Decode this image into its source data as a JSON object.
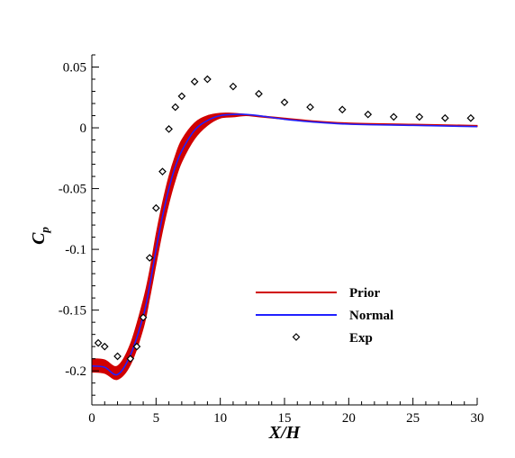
{
  "chart_data": {
    "type": "line",
    "xlabel": "X/H",
    "ylabel_main": "C",
    "ylabel_sub": "p",
    "xlim": [
      0,
      30
    ],
    "ylim": [
      -0.228,
      0.06
    ],
    "xticks": [
      0,
      5,
      10,
      15,
      20,
      25,
      30
    ],
    "xtick_labels": [
      "0",
      "5",
      "10",
      "15",
      "20",
      "25",
      "30"
    ],
    "yticks": [
      0.05,
      0,
      -0.05,
      -0.1,
      -0.15,
      -0.2
    ],
    "ytick_labels": [
      "0.05",
      "0",
      "-0.05",
      "-0.1",
      "-0.15",
      "-0.2"
    ],
    "grid": false,
    "legend_position": "lower-right",
    "series": [
      {
        "name": "Prior",
        "kind": "band",
        "color": "#d00000",
        "x": [
          0,
          1,
          2,
          3,
          4,
          4.5,
          5,
          5.5,
          6,
          6.5,
          7,
          8,
          9,
          10,
          11,
          12,
          13,
          15,
          17,
          20,
          25,
          30
        ],
        "lower": [
          -0.201,
          -0.202,
          -0.207,
          -0.195,
          -0.165,
          -0.14,
          -0.112,
          -0.085,
          -0.062,
          -0.043,
          -0.028,
          -0.009,
          0.002,
          0.008,
          0.009,
          0.01,
          0.009,
          0.007,
          0.005,
          0.003,
          0.002,
          0.001
        ],
        "upper": [
          -0.19,
          -0.191,
          -0.196,
          -0.178,
          -0.142,
          -0.118,
          -0.088,
          -0.062,
          -0.04,
          -0.023,
          -0.01,
          0.004,
          0.01,
          0.012,
          0.012,
          0.011,
          0.01,
          0.008,
          0.006,
          0.004,
          0.003,
          0.002
        ]
      },
      {
        "name": "Normal",
        "kind": "line",
        "color": "#2020ff",
        "x": [
          0,
          1,
          2,
          3,
          4,
          4.5,
          5,
          5.5,
          6,
          6.5,
          7,
          8,
          9,
          10,
          11,
          12,
          13,
          15,
          17,
          20,
          25,
          30
        ],
        "y": [
          -0.196,
          -0.197,
          -0.203,
          -0.187,
          -0.155,
          -0.13,
          -0.1,
          -0.073,
          -0.05,
          -0.032,
          -0.019,
          -0.002,
          0.006,
          0.01,
          0.011,
          0.011,
          0.01,
          0.007,
          0.005,
          0.003,
          0.002,
          0.001
        ]
      },
      {
        "name": "Exp",
        "kind": "scatter",
        "marker": "diamond",
        "color": "#000000",
        "x": [
          0.5,
          1.0,
          2.0,
          3.0,
          3.5,
          4.0,
          4.5,
          5.0,
          5.5,
          6.0,
          6.5,
          7.0,
          8.0,
          9.0,
          11.0,
          13.0,
          15.0,
          17.0,
          19.5,
          21.5,
          23.5,
          25.5,
          27.5,
          29.5
        ],
        "y": [
          -0.177,
          -0.18,
          -0.188,
          -0.19,
          -0.18,
          -0.156,
          -0.107,
          -0.066,
          -0.036,
          -0.001,
          0.017,
          0.026,
          0.038,
          0.04,
          0.034,
          0.028,
          0.021,
          0.017,
          0.015,
          0.011,
          0.009,
          0.009,
          0.008,
          0.008
        ]
      }
    ]
  }
}
